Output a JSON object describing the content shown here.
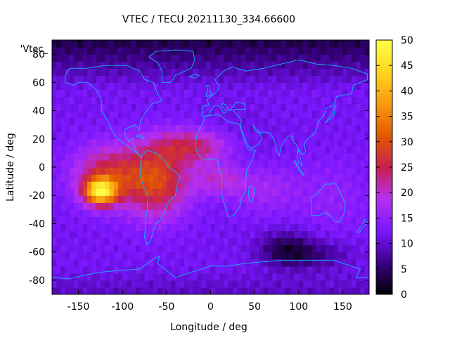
{
  "chart_data": {
    "type": "heatmap",
    "title": "VTEC / TECU 20211130_334.66600",
    "xlabel": "Longitude / deg",
    "ylabel": "Latitude / deg",
    "series_label": "'Vtec_",
    "xlim": [
      -180,
      180
    ],
    "ylim": [
      -90,
      90
    ],
    "xticks": [
      -150,
      -100,
      -50,
      0,
      50,
      100,
      150
    ],
    "yticks": [
      -80,
      -60,
      -40,
      -20,
      0,
      20,
      40,
      60,
      80
    ],
    "colorbar": {
      "min": 0,
      "max": 50,
      "ticks": [
        0,
        5,
        10,
        15,
        20,
        25,
        30,
        35,
        40,
        45,
        50
      ],
      "colormap": [
        "#000000",
        "#3b0086",
        "#7a17ff",
        "#b52ff0",
        "#c8204d",
        "#e35a00",
        "#f99a10",
        "#ffd61f",
        "#ffff4a"
      ]
    },
    "peak": {
      "lon": -125,
      "lat": -17,
      "value": 50
    },
    "background_value": 12
  }
}
